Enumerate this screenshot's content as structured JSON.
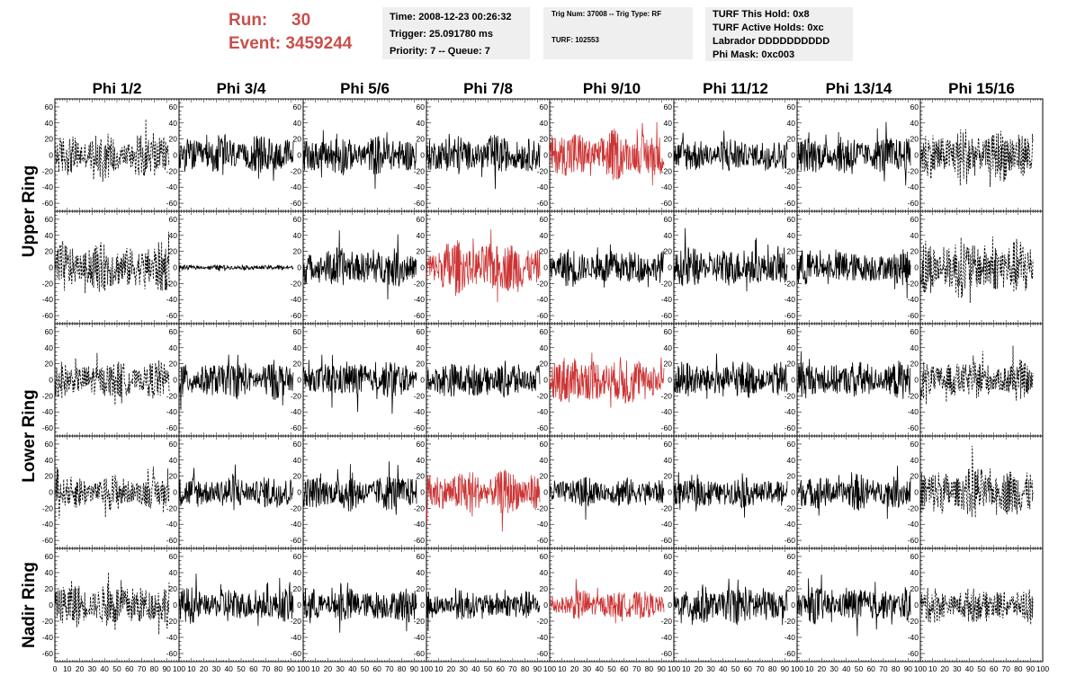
{
  "run": {
    "run_label": "Run:",
    "run_value": "30",
    "event_label": "Event:",
    "event_value": "3459244"
  },
  "header_box_1": {
    "time": "Time: 2008-12-23 00:26:32",
    "trigger": "Trigger: 25.091780 ms",
    "priority": "Priority: 7 -- Queue: 7"
  },
  "header_box_2": {
    "trig": "Trig Num: 37008 -- Trig Type: RF",
    "turf": "TURF: 102553"
  },
  "header_box_3": {
    "hold": "TURF This Hold: 0x8",
    "active": "TURF Active Holds: 0xc",
    "labrador": "Labrador DDDDDDDDDD",
    "phimask": "Phi Mask: 0xc003"
  },
  "colors": {
    "normal": "#000000",
    "highlight": "#cc3333",
    "label_red": "#c8504b"
  },
  "chart_data": {
    "type": "line",
    "columns": [
      "Phi 1/2",
      "Phi 3/4",
      "Phi 5/6",
      "Phi 7/8",
      "Phi 9/10",
      "Phi 11/12",
      "Phi 13/14",
      "Phi 15/16"
    ],
    "row_labels": [
      "Upper Ring",
      "Lower Ring",
      "Nadir Ring"
    ],
    "y_ticks": [
      "60",
      "40",
      "20",
      "0",
      "-20",
      "-40",
      "-60"
    ],
    "x_ticks": [
      "0",
      "10",
      "20",
      "30",
      "40",
      "50",
      "60",
      "70",
      "80",
      "90",
      "100"
    ],
    "xlim": [
      0,
      100
    ],
    "ylim": [
      -70,
      70
    ],
    "panels": [
      [
        {
          "style": "dashed",
          "color": "normal",
          "amp": 18
        },
        {
          "style": "solid",
          "color": "normal",
          "amp": 16
        },
        {
          "style": "solid",
          "color": "normal",
          "amp": 16
        },
        {
          "style": "solid",
          "color": "normal",
          "amp": 16
        },
        {
          "style": "solid",
          "color": "highlight",
          "amp": 20
        },
        {
          "style": "solid",
          "color": "normal",
          "amp": 14
        },
        {
          "style": "solid",
          "color": "normal",
          "amp": 16
        },
        {
          "style": "dashed",
          "color": "normal",
          "amp": 22
        }
      ],
      [
        {
          "style": "dashed",
          "color": "normal",
          "amp": 20
        },
        {
          "style": "solid",
          "color": "normal",
          "amp": 2
        },
        {
          "style": "solid",
          "color": "normal",
          "amp": 16
        },
        {
          "style": "solid",
          "color": "highlight",
          "amp": 22
        },
        {
          "style": "solid",
          "color": "normal",
          "amp": 15
        },
        {
          "style": "solid",
          "color": "normal",
          "amp": 16
        },
        {
          "style": "solid",
          "color": "normal",
          "amp": 14
        },
        {
          "style": "dashed",
          "color": "normal",
          "amp": 24
        }
      ],
      [
        {
          "style": "dashed",
          "color": "normal",
          "amp": 15
        },
        {
          "style": "solid",
          "color": "normal",
          "amp": 15
        },
        {
          "style": "solid",
          "color": "normal",
          "amp": 15
        },
        {
          "style": "solid",
          "color": "normal",
          "amp": 15
        },
        {
          "style": "solid",
          "color": "highlight",
          "amp": 20
        },
        {
          "style": "solid",
          "color": "normal",
          "amp": 15
        },
        {
          "style": "solid",
          "color": "normal",
          "amp": 15
        },
        {
          "style": "dashed",
          "color": "normal",
          "amp": 16
        }
      ],
      [
        {
          "style": "dashed",
          "color": "normal",
          "amp": 14
        },
        {
          "style": "solid",
          "color": "normal",
          "amp": 14
        },
        {
          "style": "solid",
          "color": "normal",
          "amp": 15
        },
        {
          "style": "solid",
          "color": "highlight",
          "amp": 18
        },
        {
          "style": "solid",
          "color": "normal",
          "amp": 12
        },
        {
          "style": "solid",
          "color": "normal",
          "amp": 12
        },
        {
          "style": "solid",
          "color": "normal",
          "amp": 14
        },
        {
          "style": "dashed",
          "color": "normal",
          "amp": 20
        }
      ],
      [
        {
          "style": "dashed",
          "color": "normal",
          "amp": 18
        },
        {
          "style": "solid",
          "color": "normal",
          "amp": 14
        },
        {
          "style": "solid",
          "color": "normal",
          "amp": 14
        },
        {
          "style": "solid",
          "color": "normal",
          "amp": 12
        },
        {
          "style": "solid",
          "color": "highlight",
          "amp": 12
        },
        {
          "style": "solid",
          "color": "normal",
          "amp": 16
        },
        {
          "style": "solid",
          "color": "normal",
          "amp": 14
        },
        {
          "style": "dashed",
          "color": "normal",
          "amp": 14
        }
      ]
    ]
  }
}
